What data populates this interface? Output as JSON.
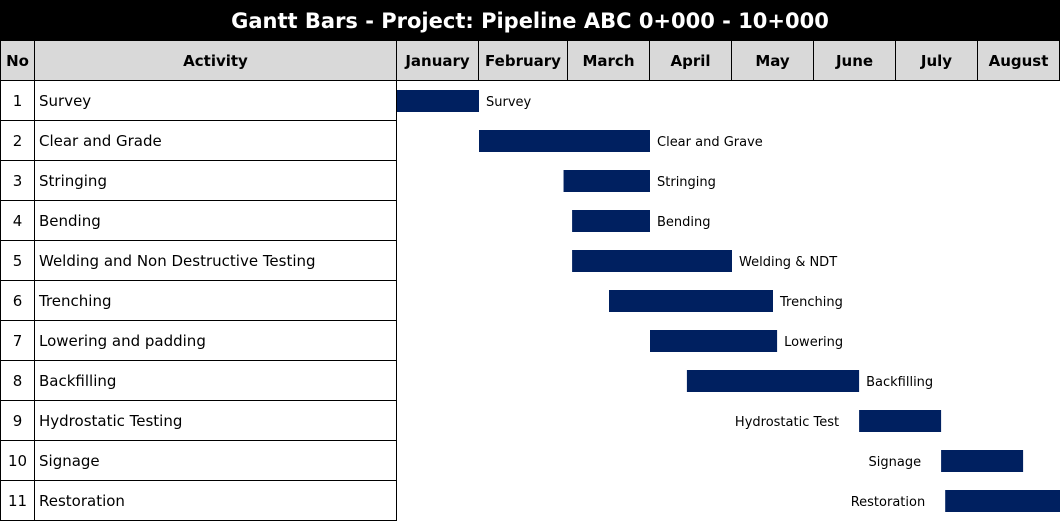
{
  "chart_data": {
    "type": "bar",
    "title": "Gantt Bars - Project: Pipeline ABC 0+000 - 10+000",
    "columns": {
      "no": "No",
      "activity": "Activity"
    },
    "months": [
      "January",
      "February",
      "March",
      "April",
      "May",
      "June",
      "July",
      "August"
    ],
    "bar_color": "#002060",
    "tasks": [
      {
        "no": "1",
        "activity": "Survey",
        "label": "Survey",
        "start": 0.0,
        "end": 1.0,
        "label_side": "right"
      },
      {
        "no": "2",
        "activity": "Clear and Grade",
        "label": "Clear and Grave",
        "start": 1.0,
        "end": 3.0,
        "label_side": "right"
      },
      {
        "no": "3",
        "activity": "Stringing",
        "label": "Stringing",
        "start": 1.95,
        "end": 3.0,
        "label_side": "right"
      },
      {
        "no": "4",
        "activity": "Bending",
        "label": "Bending",
        "start": 2.05,
        "end": 3.0,
        "label_side": "right"
      },
      {
        "no": "5",
        "activity": "Welding and Non Destructive Testing",
        "label": "Welding & NDT",
        "start": 2.05,
        "end": 4.0,
        "label_side": "right"
      },
      {
        "no": "6",
        "activity": "Trenching",
        "label": "Trenching",
        "start": 2.5,
        "end": 4.5,
        "label_side": "right"
      },
      {
        "no": "7",
        "activity": "Lowering and padding",
        "label": "Lowering",
        "start": 3.0,
        "end": 4.55,
        "label_side": "right"
      },
      {
        "no": "8",
        "activity": "Backfilling",
        "label": "Backfilling",
        "start": 3.45,
        "end": 5.55,
        "label_side": "right"
      },
      {
        "no": "9",
        "activity": "Hydrostatic Testing",
        "label": "Hydrostatic  Test",
        "start": 5.55,
        "end": 6.55,
        "label_side": "left"
      },
      {
        "no": "10",
        "activity": "Signage",
        "label": "Signage",
        "start": 6.55,
        "end": 7.55,
        "label_side": "left"
      },
      {
        "no": "11",
        "activity": "Restoration",
        "label": "Restoration",
        "start": 6.6,
        "end": 8.0,
        "label_side": "left"
      }
    ]
  }
}
